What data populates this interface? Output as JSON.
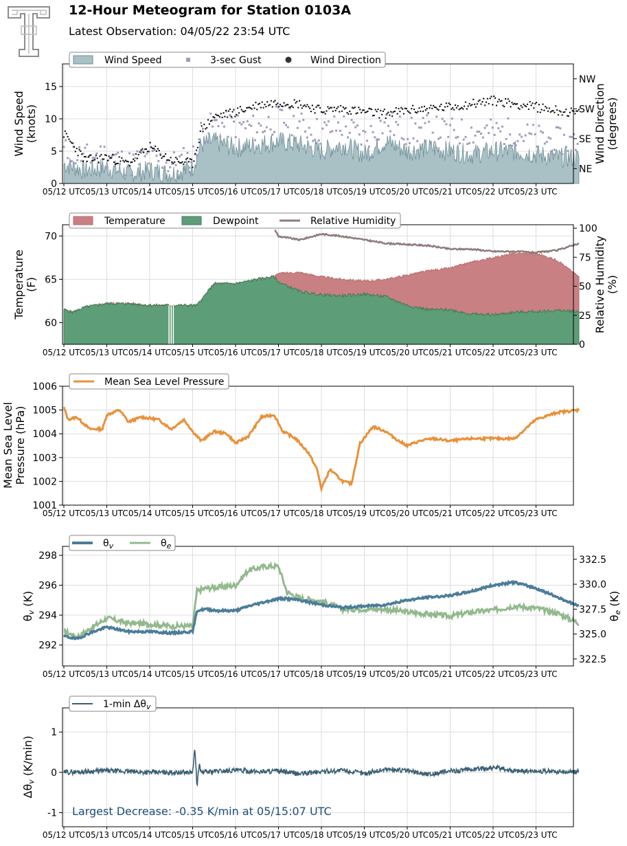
{
  "header": {
    "title": "12-Hour Meteogram for Station 0103A",
    "subtitle": "Latest Observation: 04/05/22 23:54 UTC"
  },
  "colors": {
    "wind_speed": "#a9c0c5",
    "wind_speed_edge": "#6f8e96",
    "gust": "#a39cbc",
    "direction": "#111111",
    "temperature": "#c98083",
    "dewpoint": "#5d9d78",
    "rh": "#8f7b7b",
    "mslp": "#e8913a",
    "theta_v": "#4a7d99",
    "theta_e": "#93b98e",
    "dtheta": "#3a5f75",
    "annotation": "#1f4e79",
    "grid": "#dddddd"
  },
  "x_ticks": [
    "05/12 UTC",
    "05/13 UTC",
    "05/14 UTC",
    "05/15 UTC",
    "05/16 UTC",
    "05/17 UTC",
    "05/18 UTC",
    "05/19 UTC",
    "05/20 UTC",
    "05/21 UTC",
    "05/22 UTC",
    "05/23 UTC"
  ],
  "chart_data": [
    {
      "type": "area",
      "ylabel": "Wind Speed\n(knots)",
      "ylabel_right": "Wind Direction\n(degrees)",
      "ylim": [
        0,
        18.5
      ],
      "yticks": [
        0,
        5,
        10,
        15
      ],
      "y2_ticks": [
        "NE",
        "SE",
        "SW",
        "NW"
      ],
      "y2_tick_values": [
        45,
        135,
        225,
        315
      ],
      "y2_lim": [
        0,
        360
      ],
      "legend": [
        "Wind Speed",
        "3-sec Gust",
        "Wind Direction"
      ],
      "x": [
        0,
        0.5,
        1,
        1.5,
        2,
        2.5,
        3,
        3.2,
        3.5,
        4,
        4.5,
        5,
        5.5,
        6,
        6.5,
        7,
        7.5,
        8,
        8.5,
        9,
        9.5,
        10,
        10.5,
        11,
        11.5,
        12
      ],
      "series": [
        {
          "name": "Wind Speed",
          "values": [
            3,
            2,
            2.5,
            1.5,
            2,
            1.5,
            2.5,
            6,
            6.5,
            5.5,
            6,
            6.5,
            6,
            5,
            6,
            4.5,
            6.5,
            5,
            5.5,
            5,
            4.5,
            5,
            5,
            4.5,
            4,
            4
          ]
        },
        {
          "name": "3-sec Gust",
          "values": [
            5,
            4,
            4.5,
            3,
            4,
            3,
            4,
            8,
            9,
            9,
            8.5,
            10,
            9,
            8,
            9,
            7,
            9.5,
            8,
            8.5,
            8,
            8,
            8,
            8,
            7,
            6.5,
            6.5
          ]
        },
        {
          "name": "Wind Direction",
          "values": [
            150,
            70,
            80,
            60,
            110,
            70,
            60,
            160,
            200,
            215,
            235,
            245,
            240,
            220,
            225,
            215,
            210,
            220,
            225,
            230,
            240,
            250,
            240,
            230,
            220,
            210
          ]
        }
      ]
    },
    {
      "type": "area",
      "ylabel": "Temperature\n(F)",
      "ylabel_right": "Relative Humidity\n(%)",
      "ylim": [
        57.5,
        71.3
      ],
      "yticks": [
        60,
        65,
        70
      ],
      "y2_lim": [
        0,
        103
      ],
      "y2_ticks": [
        0,
        25,
        50,
        75,
        100
      ],
      "legend": [
        "Temperature",
        "Dewpoint",
        "Relative Humidity"
      ],
      "x": [
        0,
        0.2,
        0.5,
        1,
        1.5,
        2,
        2.5,
        3,
        3.1,
        3.5,
        4,
        4.5,
        4.9,
        5,
        5.5,
        6,
        6.5,
        7,
        7.5,
        8,
        8.5,
        9,
        9.5,
        10,
        10.5,
        11,
        11.5,
        12
      ],
      "series": [
        {
          "name": "Temperature",
          "values": [
            61.5,
            61.2,
            61.8,
            62.2,
            62.2,
            62,
            62,
            62,
            62,
            64.5,
            64.5,
            65,
            65.3,
            65.7,
            65.8,
            65.3,
            65,
            64.8,
            65,
            65.5,
            66,
            66.3,
            67,
            67.5,
            68,
            68,
            67.2,
            65.3
          ]
        },
        {
          "name": "Dewpoint",
          "values": [
            61.5,
            61.2,
            61.8,
            62.2,
            62.2,
            62,
            62,
            62,
            62,
            64.5,
            64.5,
            65,
            65.3,
            64.7,
            63.6,
            63.2,
            63.1,
            63.3,
            63,
            62,
            61.5,
            61.5,
            61,
            60.9,
            61.2,
            61.3,
            61.4,
            61.3
          ]
        },
        {
          "name": "Relative Humidity",
          "values": [
            null,
            null,
            null,
            null,
            null,
            null,
            null,
            null,
            null,
            null,
            null,
            null,
            100,
            93,
            90,
            95,
            93,
            90,
            87,
            86,
            85,
            82,
            82,
            80,
            80,
            79,
            81,
            87
          ]
        }
      ]
    },
    {
      "type": "line",
      "ylabel": "Mean Sea Level\nPressure (hPa)",
      "ylim": [
        1001,
        1006
      ],
      "yticks": [
        1001,
        1002,
        1003,
        1004,
        1005,
        1006
      ],
      "legend": [
        "Mean Sea Level Pressure"
      ],
      "x": [
        0,
        0.1,
        0.3,
        0.6,
        0.9,
        1.0,
        1.3,
        1.5,
        1.8,
        2.2,
        2.5,
        2.8,
        3.0,
        3.2,
        3.5,
        3.8,
        4.0,
        4.3,
        4.6,
        4.9,
        5.1,
        5.4,
        5.7,
        5.9,
        6.0,
        6.2,
        6.5,
        6.7,
        6.9,
        7.2,
        7.5,
        7.8,
        8.0,
        8.3,
        8.6,
        9.0,
        9.5,
        10.0,
        10.5,
        11.0,
        11.5,
        12.0
      ],
      "series": [
        {
          "name": "Mean Sea Level Pressure",
          "values": [
            1005.1,
            1004.6,
            1004.7,
            1004.2,
            1004.2,
            1004.8,
            1005,
            1004.5,
            1004.7,
            1004.6,
            1004.2,
            1004.6,
            1004.1,
            1003.7,
            1004.1,
            1004.0,
            1003.6,
            1003.9,
            1004.7,
            1004.8,
            1004.1,
            1003.8,
            1003.2,
            1002.5,
            1001.7,
            1002.5,
            1002.0,
            1001.9,
            1003.6,
            1004.3,
            1004.1,
            1003.7,
            1003.5,
            1003.7,
            1003.8,
            1003.7,
            1003.8,
            1003.8,
            1003.8,
            1004.6,
            1004.9,
            1005.0
          ]
        }
      ]
    },
    {
      "type": "line",
      "ylabel": "θv (K)",
      "ylabel_right": "θe (K)",
      "ylim": [
        290.6,
        298.6
      ],
      "yticks": [
        292,
        294,
        296,
        298
      ],
      "y2_lim": [
        321.8,
        333.8
      ],
      "y2_ticks": [
        322.5,
        325.0,
        327.5,
        330.0,
        332.5
      ],
      "legend": [
        "θv",
        "θe"
      ],
      "x": [
        0,
        0.3,
        0.6,
        1.0,
        1.5,
        2.0,
        2.5,
        3.0,
        3.1,
        3.3,
        3.6,
        4.0,
        4.3,
        4.7,
        5.0,
        5.2,
        5.5,
        6.0,
        6.5,
        7.0,
        7.5,
        8.0,
        8.5,
        9.0,
        9.5,
        10.0,
        10.5,
        11.0,
        11.5,
        12.0
      ],
      "series": [
        {
          "name": "θv",
          "values": [
            292.6,
            292.4,
            292.8,
            293.2,
            292.9,
            292.9,
            292.8,
            292.9,
            294.3,
            294.4,
            294.3,
            294.3,
            294.6,
            294.9,
            295.1,
            295.1,
            295.0,
            294.7,
            294.5,
            294.6,
            294.7,
            295.0,
            295.2,
            295.3,
            295.6,
            296.0,
            296.2,
            295.8,
            295.2,
            294.6
          ]
        },
        {
          "name": "θe",
          "values": [
            325.3,
            324.7,
            325.5,
            326.6,
            326.1,
            326.0,
            325.8,
            325.8,
            329.3,
            329.6,
            329.7,
            329.9,
            331.4,
            331.8,
            331.8,
            329.2,
            328.6,
            328.3,
            327.5,
            327.5,
            327.5,
            327.2,
            327.0,
            326.8,
            327.2,
            327.4,
            327.8,
            327.6,
            327.1,
            326.1
          ]
        }
      ]
    },
    {
      "type": "line",
      "ylabel": "Δθv (K/min)",
      "ylim": [
        -1.35,
        1.6
      ],
      "yticks": [
        -1,
        0,
        1
      ],
      "legend": [
        "1-min Δθv"
      ],
      "annotation": "Largest Decrease: -0.35 K/min at 05/15:07 UTC",
      "x": [
        0,
        0.5,
        1,
        1.5,
        2,
        2.5,
        3,
        3.05,
        3.1,
        3.15,
        3.2,
        3.5,
        4,
        4.5,
        5,
        5.5,
        6,
        6.5,
        7,
        7.5,
        8,
        8.5,
        9,
        9.5,
        10,
        10.5,
        11,
        11.5,
        12
      ],
      "series": [
        {
          "name": "1-min Δθv",
          "values": [
            0,
            0.02,
            0.04,
            0.02,
            0,
            0,
            0,
            0.6,
            -0.35,
            0.2,
            0,
            0.03,
            0.05,
            0.02,
            0.03,
            -0.04,
            0.02,
            0.05,
            -0.03,
            0.08,
            0.04,
            -0.05,
            0.03,
            0.07,
            0.12,
            0.04,
            0.03,
            0.02,
            0.01
          ]
        }
      ]
    }
  ]
}
